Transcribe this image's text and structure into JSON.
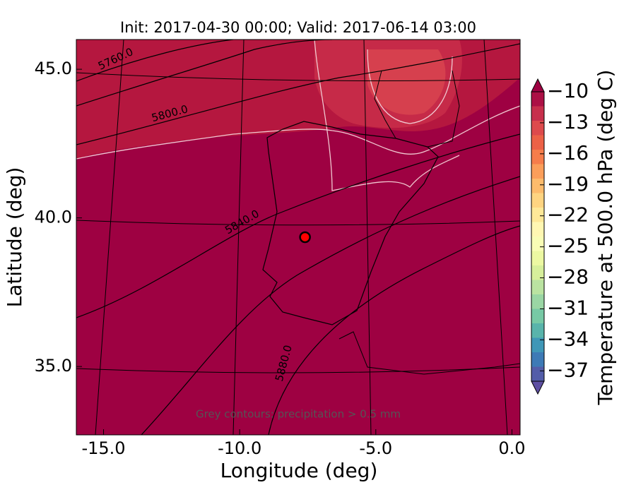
{
  "chart_data": {
    "type": "map",
    "title": "Init: 2017-04-30 00:00; Valid: 2017-06-14 03:00",
    "x_label": "Longitude (deg)",
    "y_label": "Latitude (deg)",
    "xlim": [
      -16.0,
      0.3
    ],
    "ylim": [
      32.7,
      46.0
    ],
    "xticks": [
      -15.0,
      -10.0,
      -5.0,
      0.0
    ],
    "yticks": [
      35.0,
      40.0,
      45.0
    ],
    "contour_labels": [
      "5760.0",
      "5800.0",
      "5840.0",
      "5880.0"
    ],
    "annotation": "Grey contours: precipitation > 0.5 mm",
    "marker": {
      "lon": -7.6,
      "lat": 39.35,
      "color": "#ff0000"
    },
    "colorbar": {
      "label": "Temperature at 500.0 hPa (deg C)",
      "lim": [
        -38,
        -10
      ],
      "colors": [
        "#9e0142",
        "#d53e4f",
        "#f46d43",
        "#fdae61",
        "#fee08b",
        "#ffffbf",
        "#e6f598",
        "#abdda4",
        "#66c2a5",
        "#3288bd",
        "#5e4fa2"
      ],
      "ticks": [
        {
          "value": -10,
          "label": "−10"
        },
        {
          "value": -13,
          "label": "−13"
        },
        {
          "value": -16,
          "label": "−16"
        },
        {
          "value": -19,
          "label": "−19"
        },
        {
          "value": -22,
          "label": "−22"
        },
        {
          "value": -25,
          "label": "−25"
        },
        {
          "value": -28,
          "label": "−28"
        },
        {
          "value": -31,
          "label": "−31"
        },
        {
          "value": -34,
          "label": "−34"
        },
        {
          "value": -37,
          "label": "−37"
        }
      ]
    }
  }
}
